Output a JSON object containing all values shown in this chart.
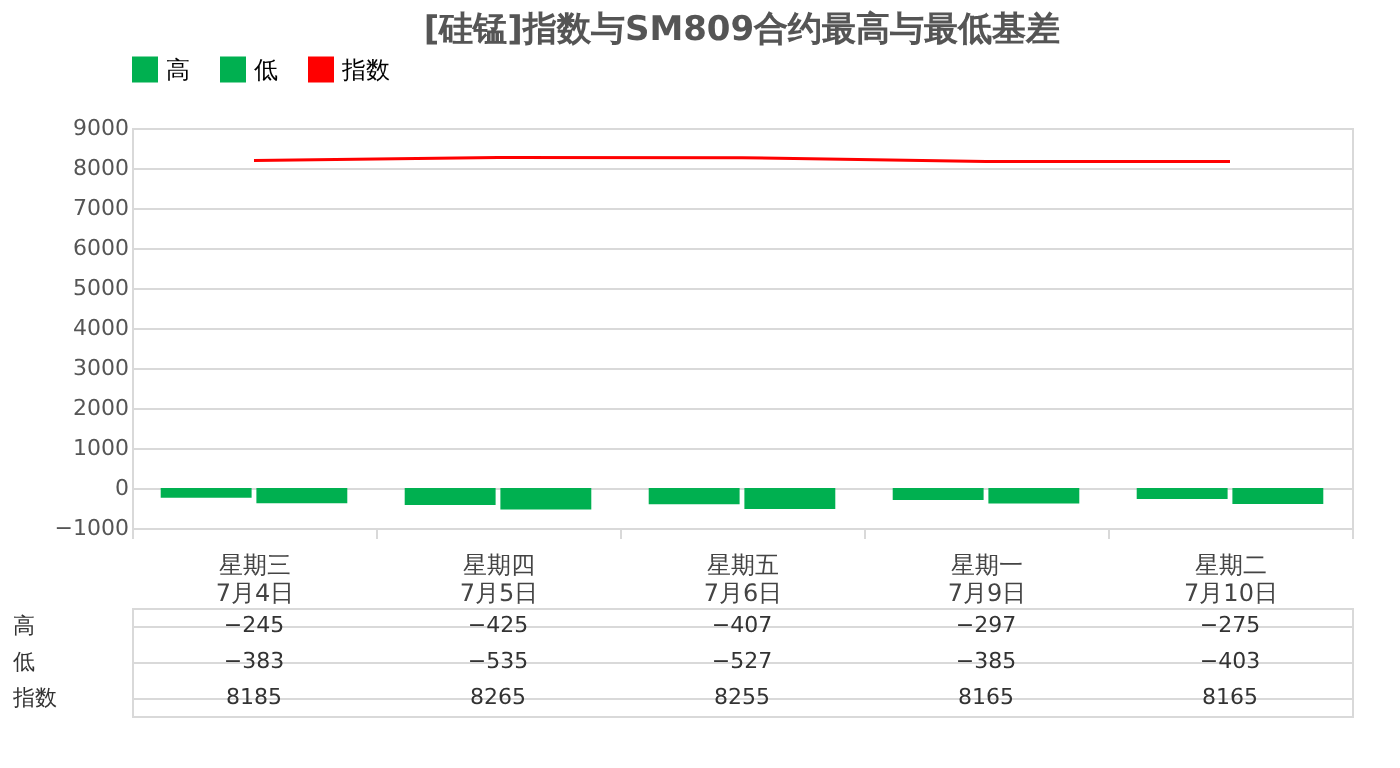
{
  "chart_data": {
    "type": "bar",
    "title": "[硅锰]指数与SM809合约最高与最低基差",
    "categories": [
      "星期三\n7月4日",
      "星期四\n7月5日",
      "星期五\n7月6日",
      "星期一\n7月9日",
      "星期二\n7月10日"
    ],
    "series": [
      {
        "name": "高",
        "color": "#00b050",
        "values": [
          -245,
          -425,
          -407,
          -297,
          -275
        ]
      },
      {
        "name": "低",
        "color": "#00b050",
        "values": [
          -383,
          -535,
          -527,
          -385,
          -403
        ]
      },
      {
        "name": "指数",
        "type": "line",
        "color": "#ff0000",
        "values": [
          8185,
          8265,
          8255,
          8165,
          8165
        ]
      }
    ],
    "ylim": [
      -1000,
      9000
    ],
    "yticks": [
      -1000,
      0,
      1000,
      2000,
      3000,
      4000,
      5000,
      6000,
      7000,
      8000,
      9000
    ],
    "grid": "y",
    "legend": "top",
    "data_labels": true,
    "marker": "none",
    "line_style": "solid"
  }
}
